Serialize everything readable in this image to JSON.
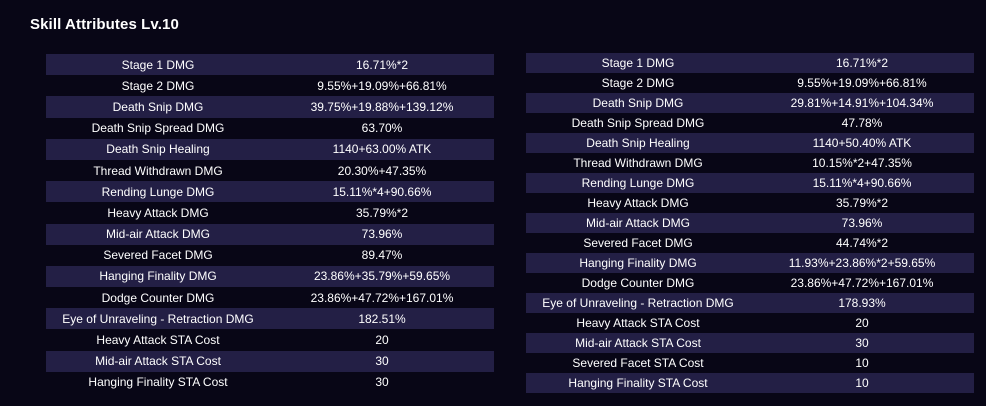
{
  "title": "Skill Attributes Lv.10",
  "left_table": [
    {
      "name": "Stage 1 DMG",
      "value": "16.71%*2"
    },
    {
      "name": "Stage 2 DMG",
      "value": "9.55%+19.09%+66.81%"
    },
    {
      "name": "Death Snip DMG",
      "value": "39.75%+19.88%+139.12%"
    },
    {
      "name": "Death Snip Spread DMG",
      "value": "63.70%"
    },
    {
      "name": "Death Snip Healing",
      "value": "1140+63.00% ATK"
    },
    {
      "name": "Thread Withdrawn DMG",
      "value": "20.30%+47.35%"
    },
    {
      "name": "Rending Lunge DMG",
      "value": "15.11%*4+90.66%"
    },
    {
      "name": "Heavy Attack DMG",
      "value": "35.79%*2"
    },
    {
      "name": "Mid-air Attack DMG",
      "value": "73.96%"
    },
    {
      "name": "Severed Facet DMG",
      "value": "89.47%"
    },
    {
      "name": "Hanging Finality DMG",
      "value": "23.86%+35.79%+59.65%"
    },
    {
      "name": "Dodge Counter DMG",
      "value": "23.86%+47.72%+167.01%"
    },
    {
      "name": "Eye of Unraveling - Retraction DMG",
      "value": "182.51%"
    },
    {
      "name": "Heavy Attack STA Cost",
      "value": "20"
    },
    {
      "name": "Mid-air Attack STA Cost",
      "value": "30"
    },
    {
      "name": "Hanging Finality STA Cost",
      "value": "30"
    }
  ],
  "right_table": [
    {
      "name": "Stage 1 DMG",
      "value": "16.71%*2"
    },
    {
      "name": "Stage 2 DMG",
      "value": "9.55%+19.09%+66.81%"
    },
    {
      "name": "Death Snip DMG",
      "value": "29.81%+14.91%+104.34%"
    },
    {
      "name": "Death Snip Spread DMG",
      "value": "47.78%"
    },
    {
      "name": "Death Snip Healing",
      "value": "1140+50.40% ATK"
    },
    {
      "name": "Thread Withdrawn DMG",
      "value": "10.15%*2+47.35%"
    },
    {
      "name": "Rending Lunge DMG",
      "value": "15.11%*4+90.66%"
    },
    {
      "name": "Heavy Attack DMG",
      "value": "35.79%*2"
    },
    {
      "name": "Mid-air Attack DMG",
      "value": "73.96%"
    },
    {
      "name": "Severed Facet DMG",
      "value": "44.74%*2"
    },
    {
      "name": "Hanging Finality DMG",
      "value": "11.93%+23.86%*2+59.65%"
    },
    {
      "name": "Dodge Counter DMG",
      "value": "23.86%+47.72%+167.01%"
    },
    {
      "name": "Eye of Unraveling - Retraction DMG",
      "value": "178.93%"
    },
    {
      "name": "Heavy Attack STA Cost",
      "value": "20"
    },
    {
      "name": "Mid-air Attack STA Cost",
      "value": "30"
    },
    {
      "name": "Severed Facet STA Cost",
      "value": "10"
    },
    {
      "name": "Hanging Finality STA Cost",
      "value": "10"
    }
  ]
}
